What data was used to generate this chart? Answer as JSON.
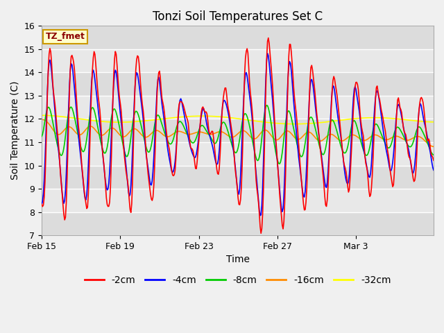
{
  "title": "Tonzi Soil Temperatures Set C",
  "xlabel": "Time",
  "ylabel": "Soil Temperature (C)",
  "ylim": [
    7.0,
    16.0
  ],
  "yticks": [
    7.0,
    8.0,
    9.0,
    10.0,
    11.0,
    12.0,
    13.0,
    14.0,
    15.0,
    16.0
  ],
  "xtick_labels": [
    "Feb 15",
    "Feb 19",
    "Feb 23",
    "Feb 27",
    "Mar 3"
  ],
  "xtick_positions": [
    0,
    96,
    192,
    288,
    384
  ],
  "total_points": 480,
  "annotation_text": "TZ_fmet",
  "colors": {
    "-2cm": "#FF0000",
    "-4cm": "#0000FF",
    "-8cm": "#00CC00",
    "-16cm": "#FF8C00",
    "-32cm": "#FFFF00"
  },
  "legend_labels": [
    "-2cm",
    "-4cm",
    "-8cm",
    "-16cm",
    "-32cm"
  ],
  "bg_color": "#DCDCDC",
  "plot_bg_color": "#E8E8E8",
  "title_fontsize": 12,
  "label_fontsize": 10,
  "tick_fontsize": 9,
  "legend_fontsize": 10,
  "linewidth": 1.2
}
